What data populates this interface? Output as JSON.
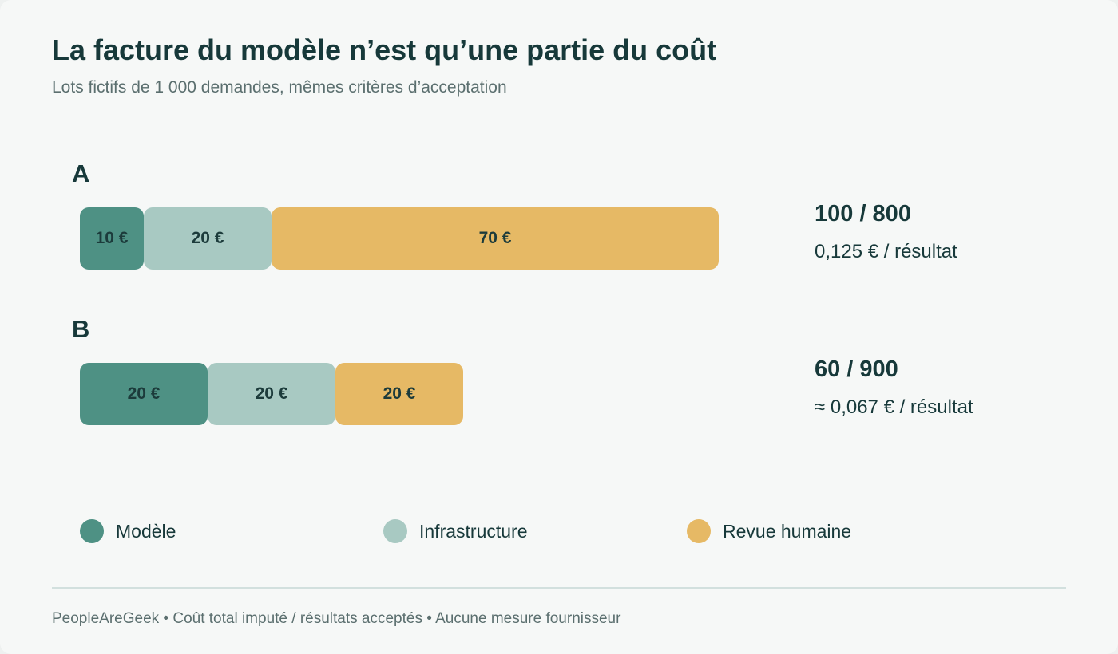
{
  "chart_data": {
    "type": "bar",
    "orientation": "horizontal",
    "stacked": true,
    "title": "La facture du modèle n’est qu’une partie du coût",
    "subtitle": "Lots fictifs de 1 000 demandes, mêmes critères d’acceptation",
    "categories": [
      "A",
      "B"
    ],
    "series": [
      {
        "name": "Modèle",
        "color": "#4e9184",
        "values": [
          10,
          20
        ],
        "labels": [
          "10 €",
          "20 €"
        ]
      },
      {
        "name": "Infrastructure",
        "color": "#a8c9c2",
        "values": [
          20,
          20
        ],
        "labels": [
          "20 €",
          "20 €"
        ]
      },
      {
        "name": "Revue humaine",
        "color": "#e6b965",
        "values": [
          70,
          20
        ],
        "labels": [
          "70 €",
          "20 €"
        ]
      }
    ],
    "annotations": [
      {
        "category": "A",
        "ratio": "100 / 800",
        "per_result": "0,125 € / résultat"
      },
      {
        "category": "B",
        "ratio": "60 / 900",
        "per_result": "≈ 0,067 € / résultat"
      }
    ],
    "legend_position": "bottom",
    "grid": false,
    "footer": "PeopleAreGeek • Coût total imputé / résultats acceptés • Aucune mesure fournisseur"
  }
}
